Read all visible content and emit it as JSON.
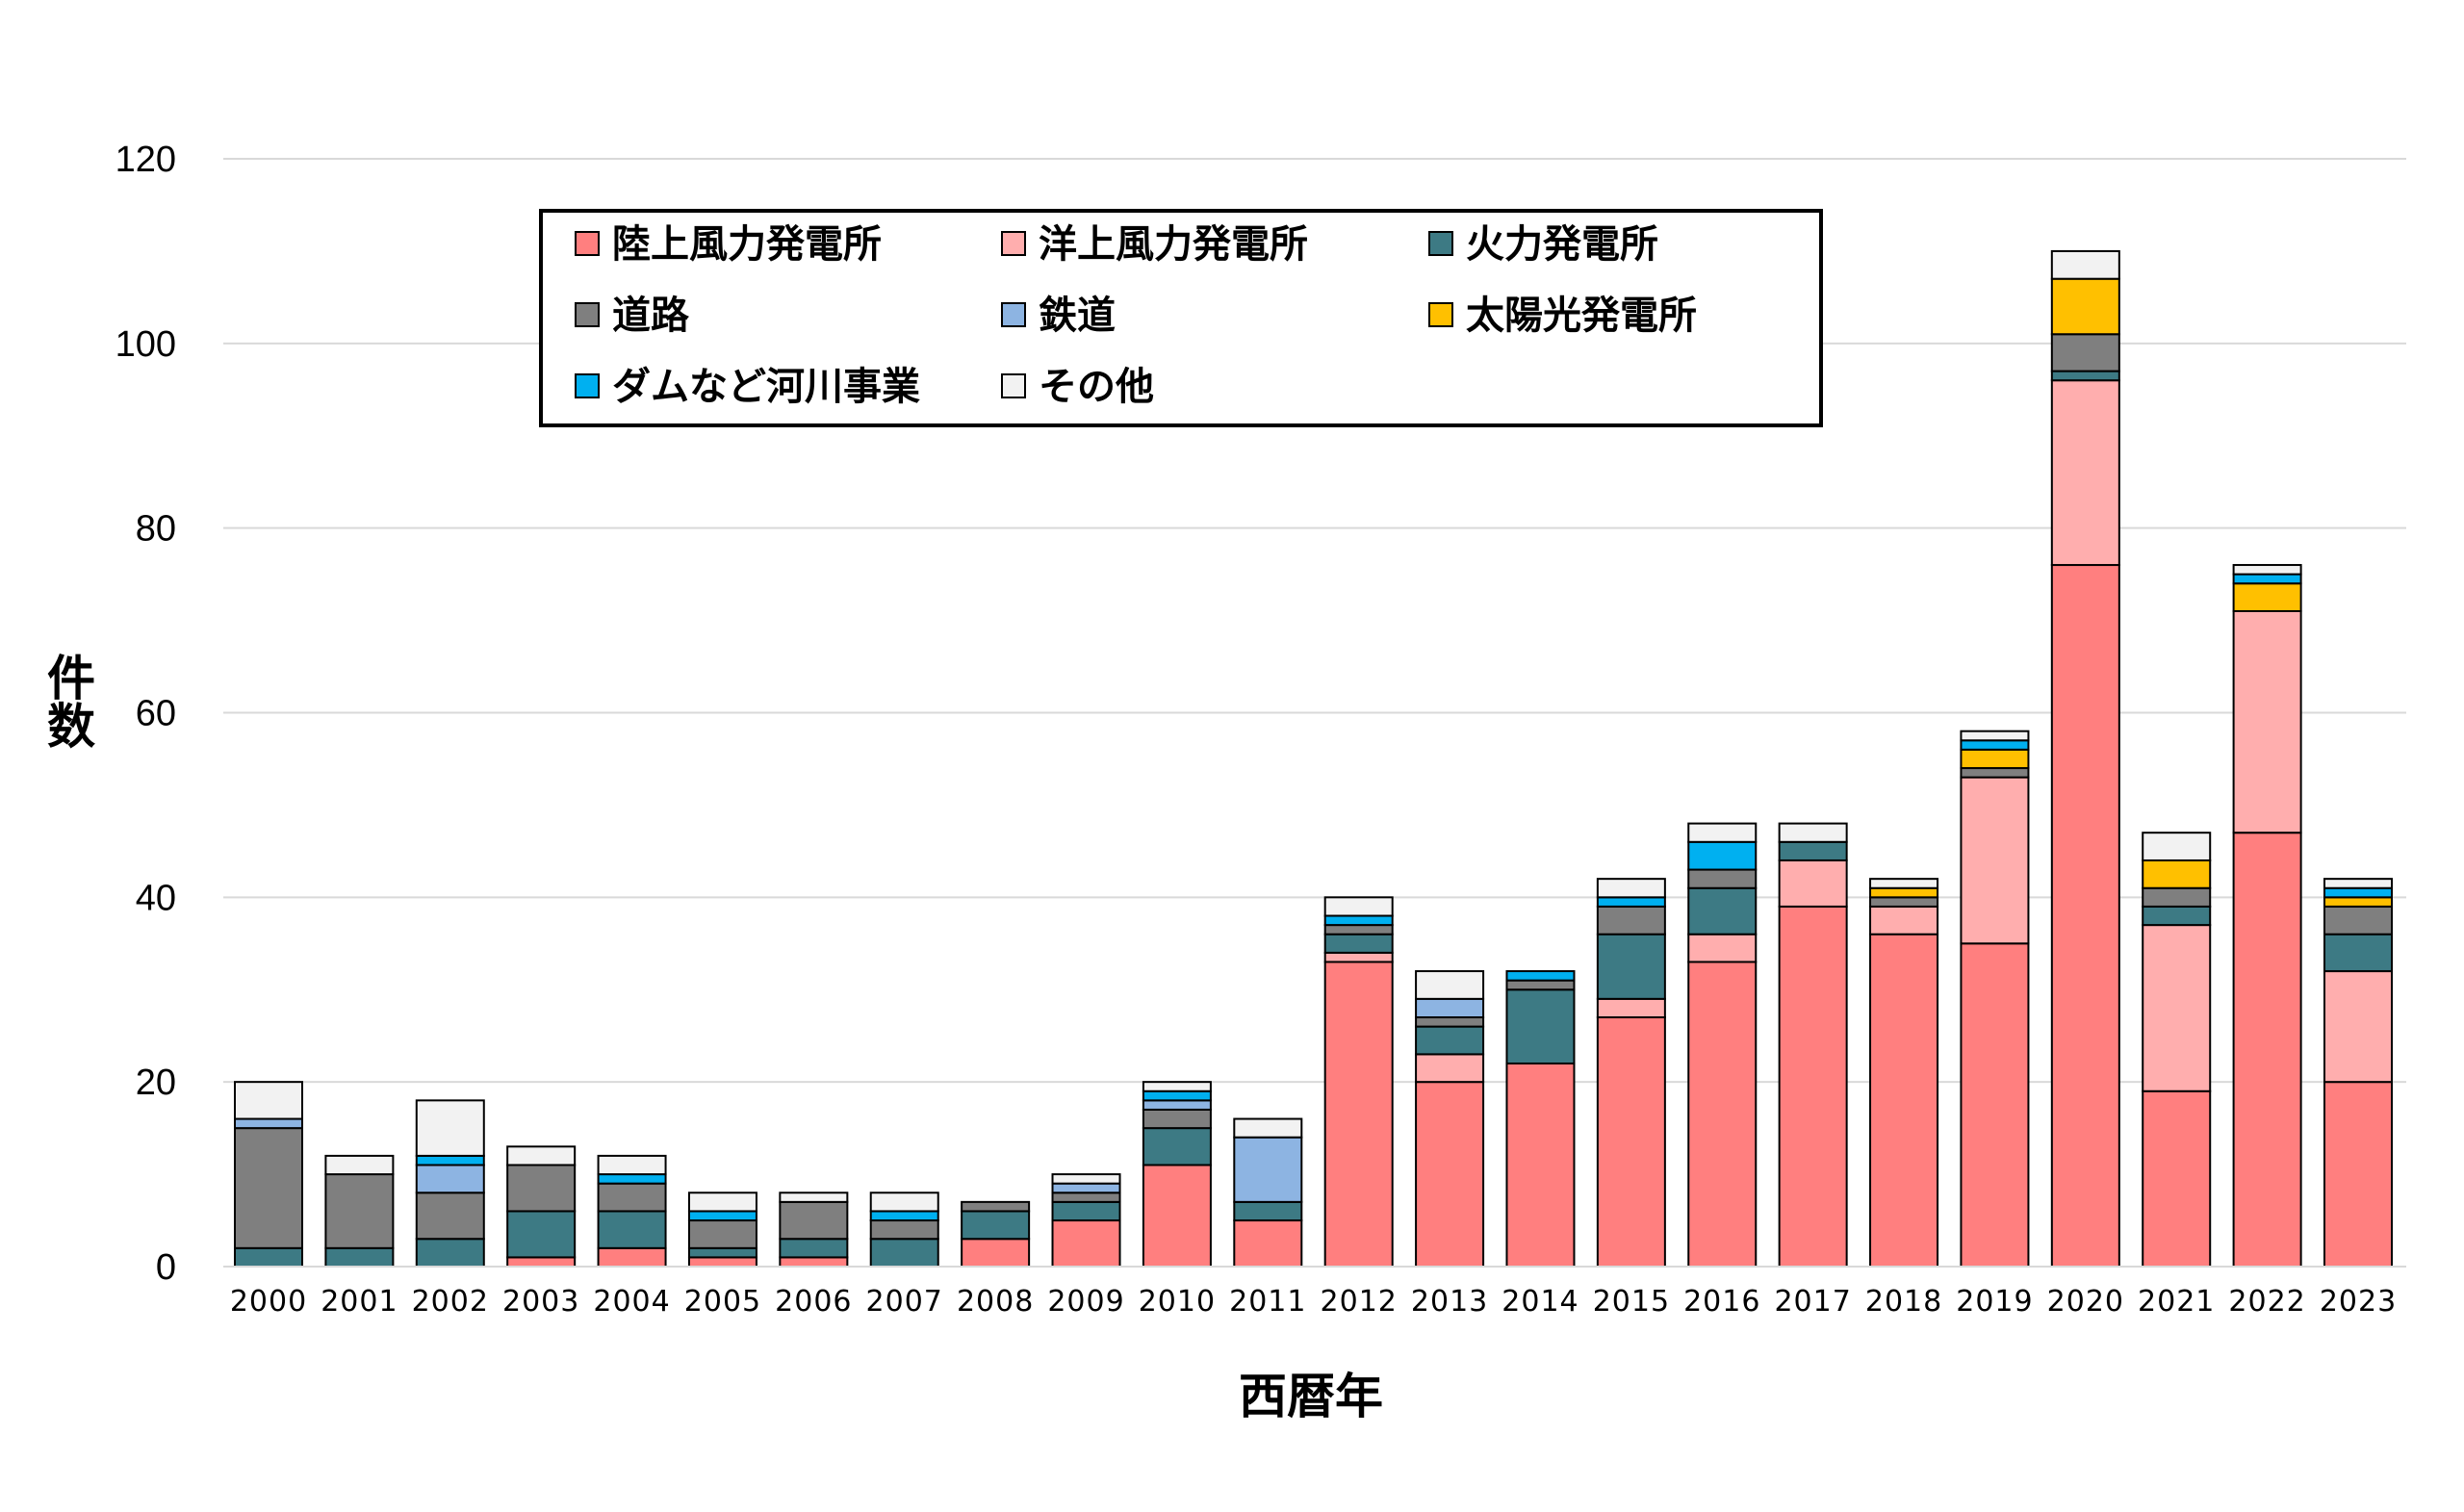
{
  "chart_data": {
    "type": "bar",
    "stacked": true,
    "title": "",
    "xlabel": "西暦年",
    "ylabel": "件数",
    "ylim": [
      0,
      120
    ],
    "yticks": [
      0,
      20,
      40,
      60,
      80,
      100,
      120
    ],
    "grid": true,
    "legend_position": "top-left",
    "categories": [
      "2000",
      "2001",
      "2002",
      "2003",
      "2004",
      "2005",
      "2006",
      "2007",
      "2008",
      "2009",
      "2010",
      "2011",
      "2012",
      "2013",
      "2014",
      "2015",
      "2016",
      "2017",
      "2018",
      "2019",
      "2020",
      "2021",
      "2022",
      "2023"
    ],
    "series": [
      {
        "name": "陸上風力発電所",
        "color": "#FF7F7F",
        "values": [
          0,
          0,
          0,
          1,
          2,
          1,
          1,
          0,
          3,
          5,
          11,
          5,
          33,
          20,
          22,
          27,
          33,
          39,
          36,
          35,
          76,
          19,
          47,
          20
        ]
      },
      {
        "name": "洋上風力発電所",
        "color": "#FFAEAE",
        "values": [
          0,
          0,
          0,
          0,
          0,
          0,
          0,
          0,
          0,
          0,
          0,
          0,
          1,
          3,
          0,
          2,
          3,
          5,
          3,
          18,
          20,
          18,
          24,
          12
        ]
      },
      {
        "name": "火力発電所",
        "color": "#3D7A84",
        "values": [
          2,
          2,
          3,
          5,
          4,
          1,
          2,
          3,
          3,
          2,
          4,
          2,
          2,
          3,
          8,
          7,
          5,
          2,
          0,
          0,
          1,
          2,
          0,
          4
        ]
      },
      {
        "name": "道路",
        "color": "#7F7F7F",
        "values": [
          13,
          8,
          5,
          5,
          3,
          3,
          4,
          2,
          1,
          1,
          2,
          0,
          1,
          1,
          1,
          3,
          2,
          0,
          1,
          1,
          4,
          2,
          0,
          3
        ]
      },
      {
        "name": "鉄道",
        "color": "#8DB4E2",
        "values": [
          1,
          0,
          3,
          0,
          0,
          0,
          0,
          0,
          0,
          1,
          1,
          7,
          0,
          2,
          0,
          0,
          0,
          0,
          0,
          0,
          0,
          0,
          0,
          0
        ]
      },
      {
        "name": "太陽光発電所",
        "color": "#FFC000",
        "values": [
          0,
          0,
          0,
          0,
          0,
          0,
          0,
          0,
          0,
          0,
          0,
          0,
          0,
          0,
          0,
          0,
          0,
          0,
          1,
          2,
          6,
          3,
          3,
          1
        ]
      },
      {
        "name": "ダムなど河川事業",
        "color": "#00B0F0",
        "values": [
          0,
          0,
          1,
          0,
          1,
          1,
          0,
          1,
          0,
          0,
          1,
          0,
          1,
          0,
          1,
          1,
          3,
          0,
          0,
          1,
          0,
          0,
          1,
          1
        ]
      },
      {
        "name": "その他",
        "color": "#F2F2F2",
        "values": [
          4,
          2,
          6,
          2,
          2,
          2,
          1,
          2,
          0,
          1,
          1,
          2,
          2,
          3,
          0,
          2,
          2,
          2,
          1,
          1,
          3,
          3,
          1,
          1
        ]
      }
    ]
  }
}
